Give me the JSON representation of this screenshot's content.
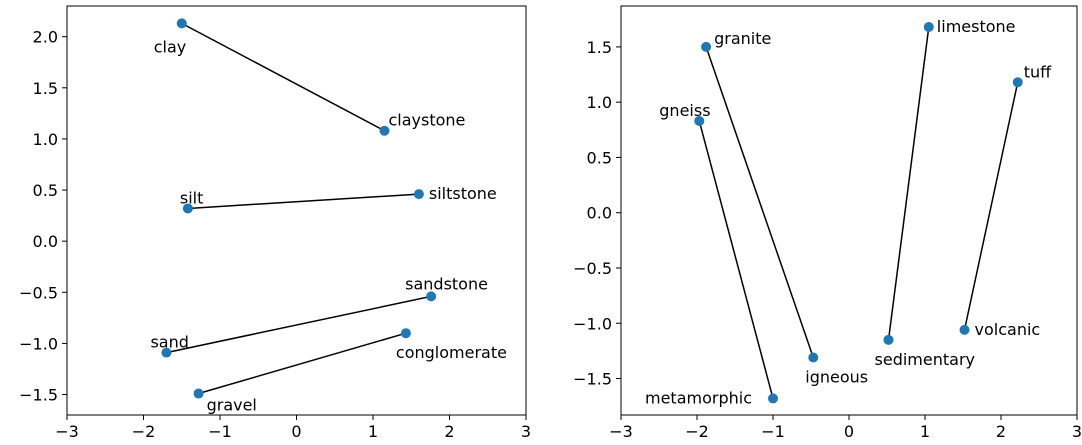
{
  "chart_data": [
    {
      "type": "scatter",
      "title": "",
      "xlabel": "",
      "ylabel": "",
      "xlim": [
        -3,
        3
      ],
      "ylim": [
        -1.7,
        2.3
      ],
      "xticks": [
        -3,
        -2,
        -1,
        0,
        1,
        2,
        3
      ],
      "xtick_labels": [
        "−3",
        "−2",
        "−1",
        "0",
        "1",
        "2",
        "3"
      ],
      "yticks": [
        -1.5,
        -1.0,
        -0.5,
        0.0,
        0.5,
        1.0,
        1.5,
        2.0
      ],
      "ytick_labels": [
        "−1.5",
        "−1.0",
        "−0.5",
        "0.0",
        "0.5",
        "1.0",
        "1.5",
        "2.0"
      ],
      "grid": false,
      "marker_color": "#1f77b4",
      "line_color": "#000000",
      "points": [
        {
          "label": "clay",
          "x": -1.5,
          "y": 2.13
        },
        {
          "label": "claystone",
          "x": 1.15,
          "y": 1.08
        },
        {
          "label": "silt",
          "x": -1.42,
          "y": 0.32
        },
        {
          "label": "siltstone",
          "x": 1.6,
          "y": 0.46
        },
        {
          "label": "sandstone",
          "x": 1.76,
          "y": -0.54
        },
        {
          "label": "sand",
          "x": -1.7,
          "y": -1.09
        },
        {
          "label": "conglomerate",
          "x": 1.43,
          "y": -0.9
        },
        {
          "label": "gravel",
          "x": -1.28,
          "y": -1.49
        }
      ],
      "pairs": [
        [
          "clay",
          "claystone"
        ],
        [
          "silt",
          "siltstone"
        ],
        [
          "sand",
          "sandstone"
        ],
        [
          "gravel",
          "conglomerate"
        ]
      ]
    },
    {
      "type": "scatter",
      "title": "",
      "xlabel": "",
      "ylabel": "",
      "xlim": [
        -3,
        3
      ],
      "ylim": [
        -1.83,
        1.87
      ],
      "xticks": [
        -3,
        -2,
        -1,
        0,
        1,
        2,
        3
      ],
      "xtick_labels": [
        "−3",
        "−2",
        "−1",
        "0",
        "1",
        "2",
        "3"
      ],
      "yticks": [
        -1.5,
        -1.0,
        -0.5,
        0.0,
        0.5,
        1.0,
        1.5
      ],
      "ytick_labels": [
        "−1.5",
        "−1.0",
        "−0.5",
        "0.0",
        "0.5",
        "1.0",
        "1.5"
      ],
      "grid": false,
      "marker_color": "#1f77b4",
      "line_color": "#000000",
      "points": [
        {
          "label": "granite",
          "x": -1.88,
          "y": 1.5
        },
        {
          "label": "gneiss",
          "x": -1.97,
          "y": 0.83
        },
        {
          "label": "limestone",
          "x": 1.05,
          "y": 1.68
        },
        {
          "label": "tuff",
          "x": 2.22,
          "y": 1.18
        },
        {
          "label": "igneous",
          "x": -0.47,
          "y": -1.31
        },
        {
          "label": "metamorphic",
          "x": -1.0,
          "y": -1.68
        },
        {
          "label": "sedimentary",
          "x": 0.52,
          "y": -1.15
        },
        {
          "label": "volcanic",
          "x": 1.52,
          "y": -1.06
        }
      ],
      "pairs": [
        [
          "granite",
          "igneous"
        ],
        [
          "gneiss",
          "metamorphic"
        ],
        [
          "limestone",
          "sedimentary"
        ],
        [
          "tuff",
          "volcanic"
        ]
      ]
    }
  ]
}
